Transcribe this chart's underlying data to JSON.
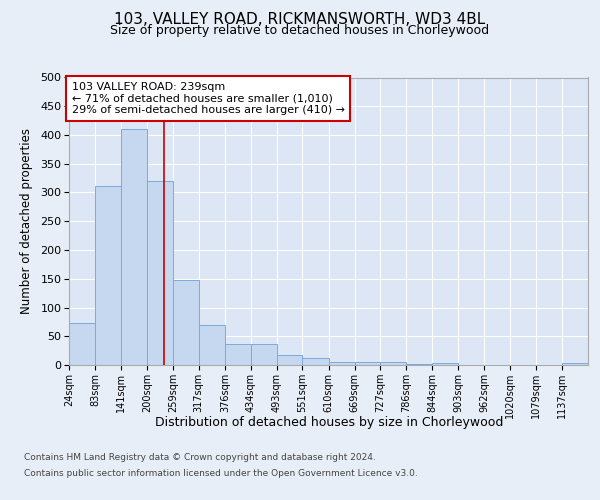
{
  "title_line1": "103, VALLEY ROAD, RICKMANSWORTH, WD3 4BL",
  "title_line2": "Size of property relative to detached houses in Chorleywood",
  "xlabel": "Distribution of detached houses by size in Chorleywood",
  "ylabel": "Number of detached properties",
  "footer_line1": "Contains HM Land Registry data © Crown copyright and database right 2024.",
  "footer_line2": "Contains public sector information licensed under the Open Government Licence v3.0.",
  "annotation_line1": "103 VALLEY ROAD: 239sqm",
  "annotation_line2": "← 71% of detached houses are smaller (1,010)",
  "annotation_line3": "29% of semi-detached houses are larger (410) →",
  "bar_edges": [
    24,
    83,
    141,
    200,
    259,
    317,
    376,
    434,
    493,
    551,
    610,
    669,
    727,
    786,
    844,
    903,
    962,
    1020,
    1079,
    1137,
    1196
  ],
  "bar_heights": [
    73,
    312,
    410,
    320,
    148,
    70,
    36,
    36,
    17,
    12,
    5,
    5,
    5,
    1,
    3,
    0,
    0,
    0,
    0,
    3
  ],
  "bar_color": "#c5d8f0",
  "bar_edge_color": "#7aabdc",
  "vline_x": 239,
  "vline_color": "#cc0000",
  "ylim": [
    0,
    500
  ],
  "yticks": [
    0,
    50,
    100,
    150,
    200,
    250,
    300,
    350,
    400,
    450,
    500
  ],
  "bg_color": "#e8eef7",
  "plot_bg_color": "#dce6f5",
  "grid_color": "#ffffff",
  "annotation_box_color": "#ffffff",
  "annotation_box_edge": "#cc0000"
}
